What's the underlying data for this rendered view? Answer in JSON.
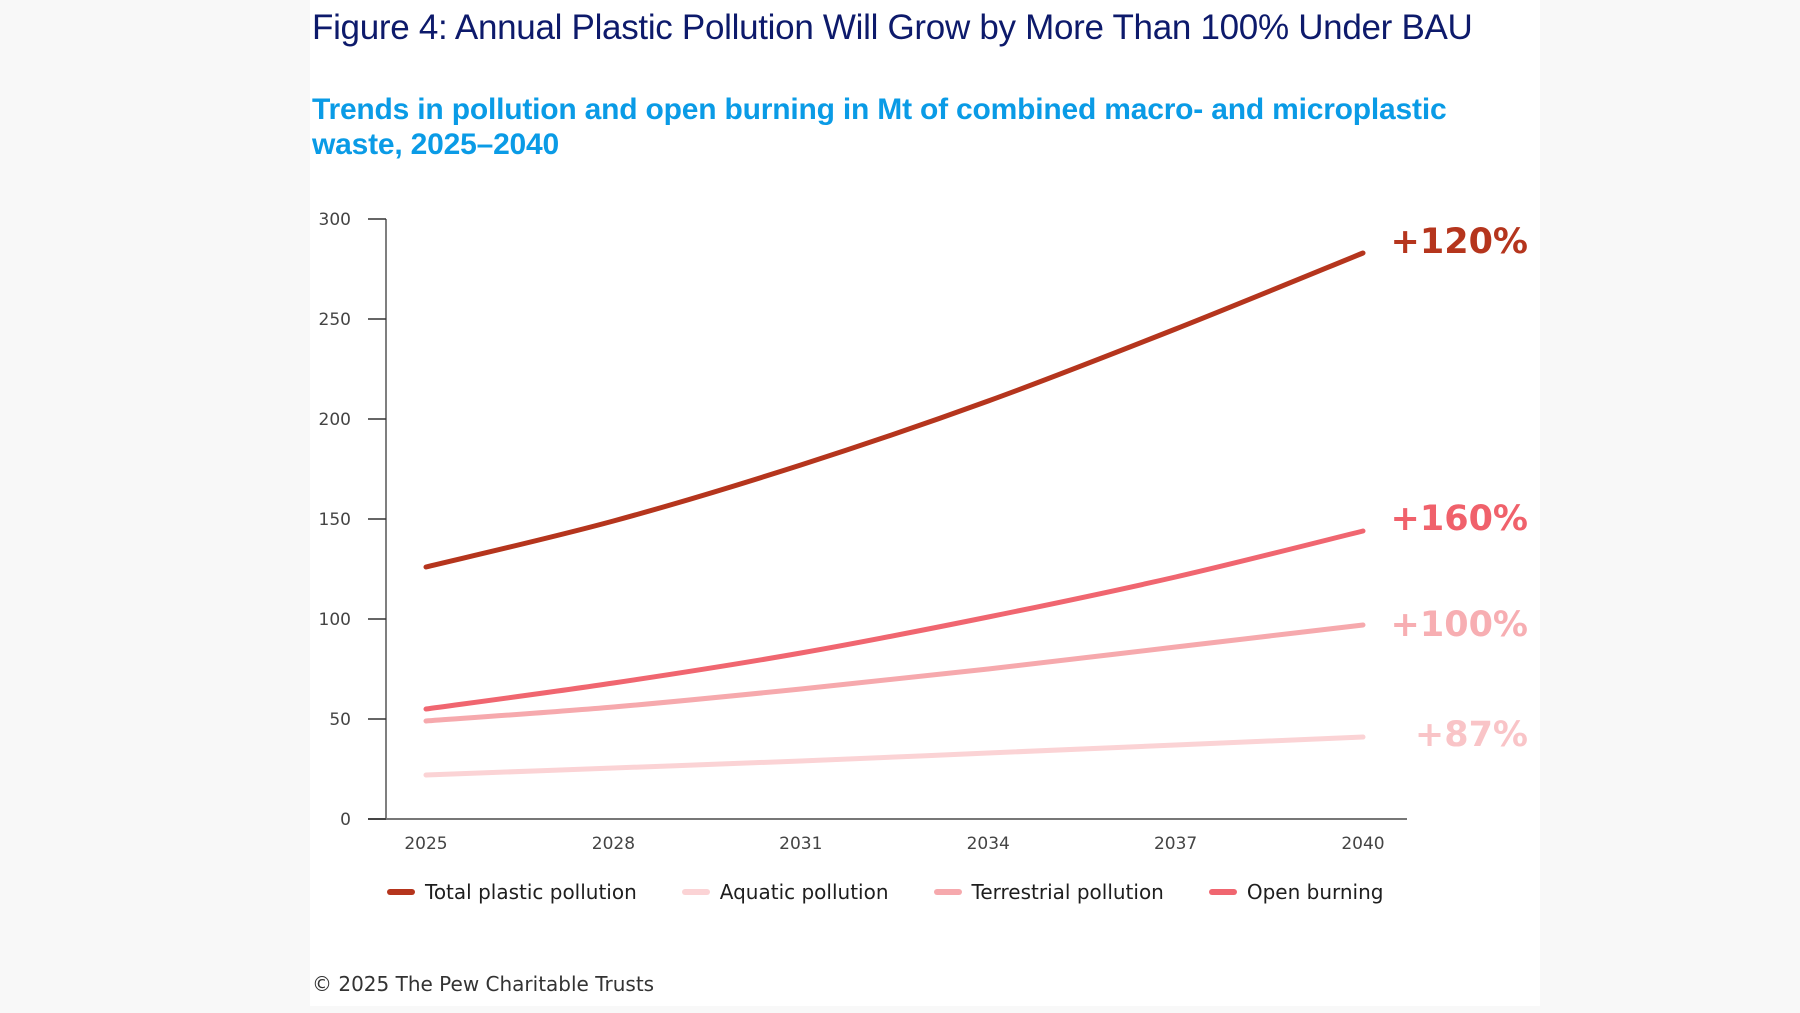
{
  "chart_data": {
    "type": "line",
    "title": "Figure 4: Annual Plastic Pollution Will Grow by More Than 100% Under BAU",
    "subtitle": "Trends in pollution and open burning in Mt of combined macro- and microplastic waste, 2025–2040",
    "xlabel": "",
    "ylabel": "",
    "x": [
      2025,
      2028,
      2031,
      2034,
      2037,
      2040
    ],
    "x_tick_labels": [
      "2025",
      "2028",
      "2031",
      "2034",
      "2037",
      "2040"
    ],
    "y_ticks": [
      0,
      50,
      100,
      150,
      200,
      250,
      300
    ],
    "y_tick_labels": [
      "0",
      "50",
      "100",
      "150",
      "200",
      "250",
      "300"
    ],
    "ylim": [
      0,
      300
    ],
    "xlim": [
      2025,
      2040
    ],
    "grid": false,
    "legend_position": "bottom",
    "series": [
      {
        "name": "Total plastic pollution",
        "color": "#b5351d",
        "values": [
          126,
          149,
          177,
          209,
          245,
          283
        ],
        "end_label": "+120%"
      },
      {
        "name": "Aquatic pollution",
        "color": "#fbd3d5",
        "values": [
          22,
          25.5,
          29,
          33,
          37,
          41
        ],
        "end_label": "+87%"
      },
      {
        "name": "Terrestrial pollution",
        "color": "#f6a9ad",
        "values": [
          49,
          56,
          65,
          75,
          86,
          97
        ],
        "end_label": "+100%"
      },
      {
        "name": "Open burning",
        "color": "#f06670",
        "values": [
          55,
          68,
          83,
          101,
          121,
          144
        ],
        "end_label": "+160%"
      }
    ],
    "end_label_colors": {
      "Total plastic pollution": "#b5351d",
      "Open burning": "#f0616b",
      "Terrestrial pollution": "#f7aeb2",
      "Aquatic pollution": "#f9c4c7"
    }
  },
  "header": {
    "title": "Figure 4: Annual Plastic Pollution Will Grow by More Than 100% Under BAU",
    "subtitle": "Trends in pollution and open burning in Mt of combined macro- and microplastic waste, 2025–2040"
  },
  "legend": [
    {
      "label": "Total plastic pollution",
      "color": "#b5351d"
    },
    {
      "label": "Aquatic pollution",
      "color": "#fbd3d5"
    },
    {
      "label": "Terrestrial pollution",
      "color": "#f6a9ad"
    },
    {
      "label": "Open burning",
      "color": "#f06670"
    }
  ],
  "footer": {
    "copyright": "© 2025 The Pew Charitable Trusts"
  }
}
